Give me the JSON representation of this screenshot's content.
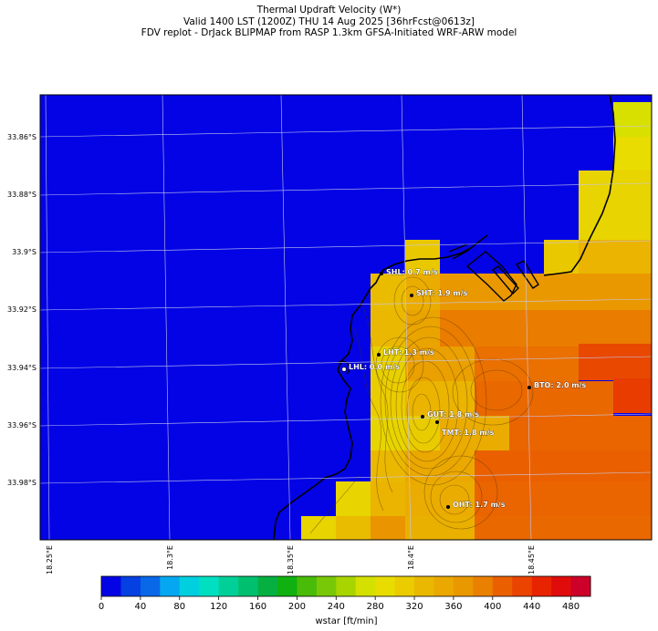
{
  "title": {
    "line1": "Thermal Updraft Velocity (W*)",
    "line2": "Valid 1400 LST (1200Z) THU 14 Aug 2025 [36hrFcst@0613z]",
    "line3": "FDV replot - DrJack BLIPMAP from RASP 1.3km GFSA-Initiated WRF-ARW model"
  },
  "axes": {
    "lat_labels": [
      {
        "label": "33.86°S",
        "lat": -33.86
      },
      {
        "label": "33.88°S",
        "lat": -33.88
      },
      {
        "label": "33.9°S",
        "lat": -33.9
      },
      {
        "label": "33.92°S",
        "lat": -33.92
      },
      {
        "label": "33.94°S",
        "lat": -33.94
      },
      {
        "label": "33.96°S",
        "lat": -33.96
      },
      {
        "label": "33.98°S",
        "lat": -33.98
      }
    ],
    "lon_labels": [
      {
        "label": "18.25°E",
        "lon": 18.25
      },
      {
        "label": "18.3°E",
        "lon": 18.3
      },
      {
        "label": "18.35°E",
        "lon": 18.35
      },
      {
        "label": "18.4°E",
        "lon": 18.4
      },
      {
        "label": "18.45°E",
        "lon": 18.45
      }
    ],
    "grid": true
  },
  "sites": [
    {
      "code": "SHL",
      "label": "SHL: 0.7 m/s",
      "value_ms": 0.7,
      "lat": -33.907,
      "lon": 18.394
    },
    {
      "code": "SHT",
      "label": "SHT: 1.9 m/s",
      "value_ms": 1.9,
      "lat": -33.915,
      "lon": 18.4
    },
    {
      "code": "LHT",
      "label": "LHT: 1.3 m/s",
      "value_ms": 1.3,
      "lat": -33.936,
      "lon": 18.393
    },
    {
      "code": "LHL",
      "label": "LHL: 0.0 m/s",
      "value_ms": 0.0,
      "lat": -33.94,
      "lon": 18.372
    },
    {
      "code": "BTO",
      "label": "BTO: 2.0 m/s",
      "value_ms": 2.0,
      "lat": -33.946,
      "lon": 18.45
    },
    {
      "code": "GUT",
      "label": "GUT: 1.8 m/s",
      "value_ms": 1.8,
      "lat": -33.957,
      "lon": 18.405
    },
    {
      "code": "TMT",
      "label": "TMT: 1.8 m/s",
      "value_ms": 1.8,
      "lat": -33.959,
      "lon": 18.412
    },
    {
      "code": "OHT",
      "label": "OHT: 1.7 m/s",
      "value_ms": 1.7,
      "lat": -33.984,
      "lon": 18.417
    }
  ],
  "colorbar": {
    "label": "wstar [ft/min]",
    "ticks": [
      "0",
      "40",
      "80",
      "120",
      "160",
      "200",
      "240",
      "280",
      "320",
      "360",
      "400",
      "440",
      "480"
    ],
    "min": 0,
    "max": 500,
    "step": 20,
    "colors": [
      "#0303e6",
      "#0540e0",
      "#0868e8",
      "#05a8f0",
      "#00cfe0",
      "#00dfc0",
      "#00d098",
      "#00c070",
      "#05b040",
      "#10b010",
      "#48bc08",
      "#78c808",
      "#a8d400",
      "#d4e000",
      "#e8dc00",
      "#eacc00",
      "#eab800",
      "#eaa800",
      "#ea9800",
      "#ea8000",
      "#ea6000",
      "#ea4400",
      "#e82400",
      "#e00c0c",
      "#cc0028"
    ]
  },
  "colors": {
    "water": "#0303e6",
    "coastline": "#000000",
    "gridline": "#c8c8e8",
    "site_label": "#ffffff"
  }
}
